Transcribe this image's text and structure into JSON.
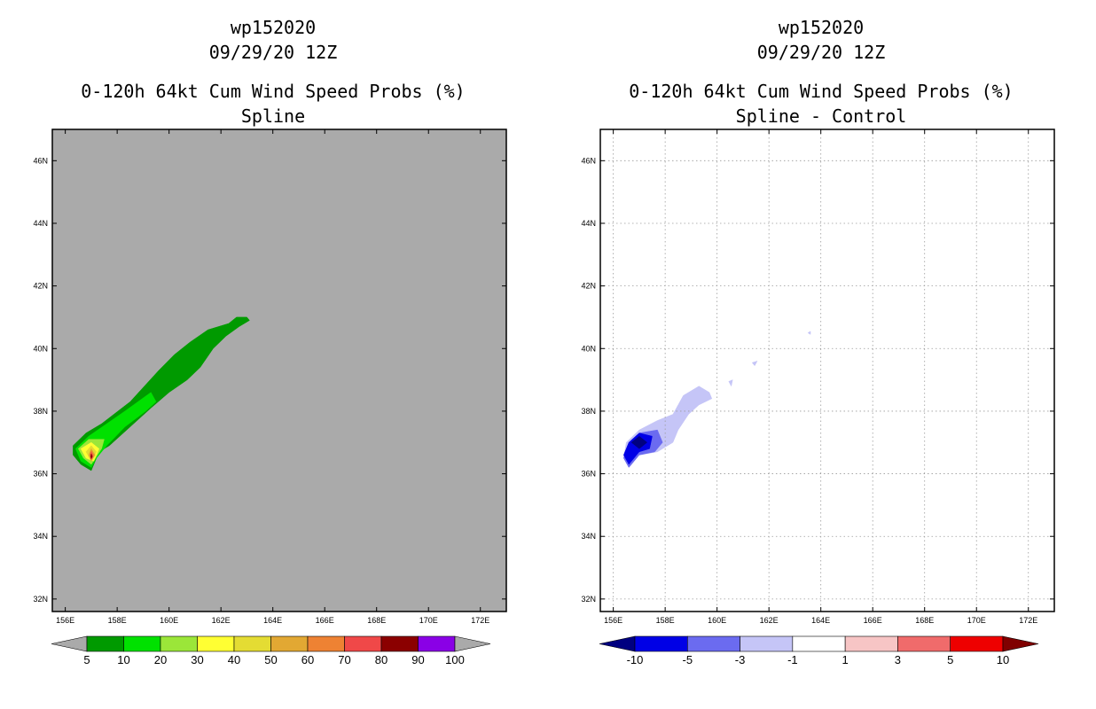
{
  "chart_data": [
    {
      "type": "heatmap",
      "title": [
        "wp152020",
        "09/29/20 12Z",
        "0-120h 64kt Cum Wind Speed Probs (%)",
        "Spline"
      ],
      "xlabel": "",
      "ylabel": "",
      "xlim": [
        155.5,
        173
      ],
      "ylim": [
        31.6,
        47
      ],
      "x_ticks": [
        "156E",
        "158E",
        "160E",
        "162E",
        "164E",
        "166E",
        "168E",
        "170E",
        "172E"
      ],
      "y_ticks": [
        "32N",
        "34N",
        "36N",
        "38N",
        "40N",
        "42N",
        "44N",
        "46N"
      ],
      "background": "#aaaaaa",
      "colorbar": {
        "labels": [
          "5",
          "10",
          "20",
          "30",
          "40",
          "50",
          "60",
          "70",
          "80",
          "90",
          "100"
        ],
        "colors": [
          "#009a00",
          "#00e100",
          "#9be639",
          "#ffff33",
          "#e4dc33",
          "#e2a833",
          "#ee8233",
          "#f04848",
          "#8b0000",
          "#8a00e6"
        ],
        "end_colors": [
          "#aaaaaa",
          "#aaaaaa"
        ]
      },
      "contours": [
        {
          "level": "5-10",
          "color": "#009a00",
          "points": [
            [
              156.3,
              36.9
            ],
            [
              156.8,
              37.3
            ],
            [
              157.4,
              37.6
            ],
            [
              158.5,
              38.3
            ],
            [
              159.6,
              39.3
            ],
            [
              160.2,
              39.8
            ],
            [
              160.8,
              40.2
            ],
            [
              161.5,
              40.6
            ],
            [
              162.3,
              40.8
            ],
            [
              162.6,
              41.0
            ],
            [
              163.0,
              41.0
            ],
            [
              163.1,
              40.9
            ],
            [
              162.7,
              40.7
            ],
            [
              162.2,
              40.4
            ],
            [
              161.7,
              40.0
            ],
            [
              161.2,
              39.4
            ],
            [
              160.7,
              39.0
            ],
            [
              160.0,
              38.6
            ],
            [
              159.3,
              38.1
            ],
            [
              158.5,
              37.5
            ],
            [
              157.7,
              36.9
            ],
            [
              157.3,
              36.7
            ],
            [
              157.0,
              36.1
            ],
            [
              156.6,
              36.3
            ],
            [
              156.3,
              36.6
            ]
          ]
        },
        {
          "level": "10-20",
          "color": "#00e100",
          "points": [
            [
              156.4,
              36.8
            ],
            [
              156.9,
              37.2
            ],
            [
              157.6,
              37.6
            ],
            [
              158.3,
              38.0
            ],
            [
              159.3,
              38.6
            ],
            [
              159.5,
              38.3
            ],
            [
              159.1,
              38.0
            ],
            [
              158.3,
              37.5
            ],
            [
              157.6,
              36.9
            ],
            [
              157.2,
              36.5
            ],
            [
              157.0,
              36.2
            ],
            [
              156.6,
              36.4
            ]
          ]
        },
        {
          "level": "20-30",
          "color": "#9be639",
          "points": [
            [
              156.5,
              36.8
            ],
            [
              156.9,
              37.1
            ],
            [
              157.5,
              37.1
            ],
            [
              157.4,
              36.8
            ],
            [
              157.0,
              36.3
            ],
            [
              156.7,
              36.5
            ]
          ]
        },
        {
          "level": "30-40",
          "color": "#ffff33",
          "points": [
            [
              156.6,
              36.8
            ],
            [
              157.0,
              37.0
            ],
            [
              157.3,
              36.8
            ],
            [
              157.1,
              36.4
            ],
            [
              156.8,
              36.5
            ]
          ]
        },
        {
          "level": "40-50",
          "color": "#e4dc33",
          "points": [
            [
              156.8,
              36.7
            ],
            [
              157.0,
              36.9
            ],
            [
              157.2,
              36.7
            ],
            [
              157.0,
              36.4
            ]
          ]
        },
        {
          "level": "50-60",
          "color": "#e2a833",
          "points": [
            [
              156.9,
              36.6
            ],
            [
              157.0,
              36.8
            ],
            [
              157.15,
              36.6
            ],
            [
              157.0,
              36.4
            ]
          ]
        },
        {
          "level": "60-70",
          "color": "#ee8233",
          "points": [
            [
              156.95,
              36.6
            ],
            [
              157.0,
              36.75
            ],
            [
              157.1,
              36.6
            ],
            [
              157.0,
              36.45
            ]
          ]
        },
        {
          "level": "70-80",
          "color": "#f04848",
          "points": [
            [
              156.97,
              36.55
            ],
            [
              157.0,
              36.7
            ],
            [
              157.07,
              36.55
            ],
            [
              157.0,
              36.45
            ]
          ]
        },
        {
          "level": "80-90",
          "color": "#8b0000",
          "points": [
            [
              156.98,
              36.55
            ],
            [
              157.0,
              36.64
            ],
            [
              157.04,
              36.55
            ],
            [
              157.0,
              36.48
            ]
          ]
        }
      ]
    },
    {
      "type": "heatmap",
      "title": [
        "wp152020",
        "09/29/20 12Z",
        "0-120h 64kt Cum Wind Speed Probs (%)",
        "Spline - Control"
      ],
      "xlabel": "",
      "ylabel": "",
      "xlim": [
        155.5,
        173
      ],
      "ylim": [
        31.6,
        47
      ],
      "x_ticks": [
        "156E",
        "158E",
        "160E",
        "162E",
        "164E",
        "166E",
        "168E",
        "170E",
        "172E"
      ],
      "y_ticks": [
        "32N",
        "34N",
        "36N",
        "38N",
        "40N",
        "42N",
        "44N",
        "46N"
      ],
      "background": "#ffffff",
      "grid": true,
      "colorbar": {
        "labels": [
          "-10",
          "-5",
          "-3",
          "-1",
          "1",
          "3",
          "5",
          "10"
        ],
        "colors": [
          "#0000e6",
          "#6b6bf0",
          "#c5c5f7",
          "#ffffff",
          "#f7c5c5",
          "#f06b6b",
          "#ee0000"
        ],
        "end_colors": [
          "#000080",
          "#800000"
        ]
      },
      "contours": [
        {
          "level": "-3 to -1",
          "color": "#c5c5f7",
          "points": [
            [
              156.4,
              36.5
            ],
            [
              156.5,
              37.0
            ],
            [
              157.0,
              37.4
            ],
            [
              157.7,
              37.7
            ],
            [
              158.3,
              37.9
            ],
            [
              158.7,
              38.5
            ],
            [
              159.3,
              38.8
            ],
            [
              159.7,
              38.6
            ],
            [
              159.8,
              38.4
            ],
            [
              159.3,
              38.2
            ],
            [
              158.9,
              37.9
            ],
            [
              158.5,
              37.4
            ],
            [
              158.3,
              37.0
            ],
            [
              157.7,
              36.7
            ],
            [
              157.0,
              36.6
            ],
            [
              156.6,
              36.2
            ]
          ]
        },
        {
          "level": "-3 to -1",
          "color": "#c5c5f7",
          "points": [
            [
              160.45,
              38.95
            ],
            [
              160.6,
              39.0
            ],
            [
              160.55,
              38.8
            ]
          ]
        },
        {
          "level": "-3 to -1",
          "color": "#c5c5f7",
          "points": [
            [
              161.35,
              39.55
            ],
            [
              161.55,
              39.6
            ],
            [
              161.45,
              39.45
            ]
          ]
        },
        {
          "level": "-3 to -1",
          "color": "#c5c5f7",
          "points": [
            [
              163.5,
              40.5
            ],
            [
              163.6,
              40.55
            ],
            [
              163.6,
              40.45
            ]
          ]
        },
        {
          "level": "-5 to -3",
          "color": "#6b6bf0",
          "points": [
            [
              156.4,
              36.5
            ],
            [
              156.6,
              37.0
            ],
            [
              157.0,
              37.3
            ],
            [
              157.7,
              37.4
            ],
            [
              157.9,
              37.0
            ],
            [
              157.6,
              36.7
            ],
            [
              157.0,
              36.6
            ],
            [
              156.6,
              36.2
            ]
          ]
        },
        {
          "level": "-10 to -5",
          "color": "#0000e6",
          "points": [
            [
              156.4,
              36.6
            ],
            [
              156.6,
              37.0
            ],
            [
              157.0,
              37.3
            ],
            [
              157.5,
              37.2
            ],
            [
              157.4,
              36.8
            ],
            [
              157.0,
              36.7
            ],
            [
              156.6,
              36.3
            ]
          ]
        },
        {
          "level": "< -10",
          "color": "#000080",
          "points": [
            [
              156.7,
              37.0
            ],
            [
              157.0,
              37.2
            ],
            [
              157.3,
              37.0
            ],
            [
              157.0,
              36.8
            ]
          ]
        }
      ]
    }
  ]
}
